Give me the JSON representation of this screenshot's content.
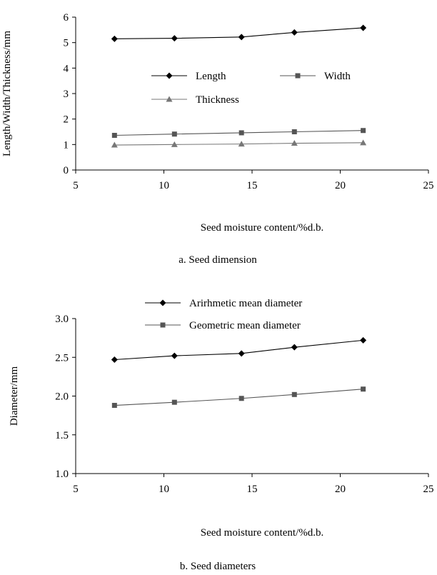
{
  "chart_data": [
    {
      "type": "line",
      "caption": "a. Seed dimension",
      "xlabel": "Seed moisture content/%d.b.",
      "ylabel": "Length/Width/Thickness/mm",
      "xlim": [
        5,
        25
      ],
      "ylim": [
        0,
        6
      ],
      "xticks": [
        5,
        10,
        15,
        20,
        25
      ],
      "yticks": [
        0,
        1,
        2,
        3,
        4,
        5,
        6
      ],
      "grid": false,
      "legend_position": "center, two rows",
      "x": [
        7.2,
        10.6,
        14.4,
        17.4,
        21.3
      ],
      "series": [
        {
          "name": "Length",
          "marker": "diamond",
          "color": "#000000",
          "values": [
            5.15,
            5.17,
            5.22,
            5.4,
            5.58
          ]
        },
        {
          "name": "Width",
          "marker": "square",
          "color": "#555555",
          "values": [
            1.36,
            1.41,
            1.46,
            1.5,
            1.55
          ]
        },
        {
          "name": "Thickness",
          "marker": "triangle",
          "color": "#777777",
          "values": [
            0.98,
            1.0,
            1.02,
            1.05,
            1.07
          ]
        }
      ]
    },
    {
      "type": "line",
      "caption": "b. Seed diameters",
      "xlabel": "Seed moisture content/%d.b.",
      "ylabel": "Diameter/mm",
      "xlim": [
        5,
        25
      ],
      "ylim": [
        1.0,
        3.0
      ],
      "xticks": [
        5,
        10,
        15,
        20,
        25
      ],
      "yticks": [
        "1.0",
        "1.5",
        "2.0",
        "2.5",
        "3.0"
      ],
      "grid": false,
      "legend_position": "top, stacked",
      "x": [
        7.2,
        10.6,
        14.4,
        17.4,
        21.3
      ],
      "series": [
        {
          "name": "Arirhmetic mean diameter",
          "marker": "diamond",
          "color": "#000000",
          "values": [
            2.47,
            2.52,
            2.55,
            2.63,
            2.72
          ]
        },
        {
          "name": "Geometric mean diameter",
          "marker": "square",
          "color": "#555555",
          "values": [
            1.88,
            1.92,
            1.97,
            2.02,
            2.09
          ]
        }
      ]
    }
  ]
}
